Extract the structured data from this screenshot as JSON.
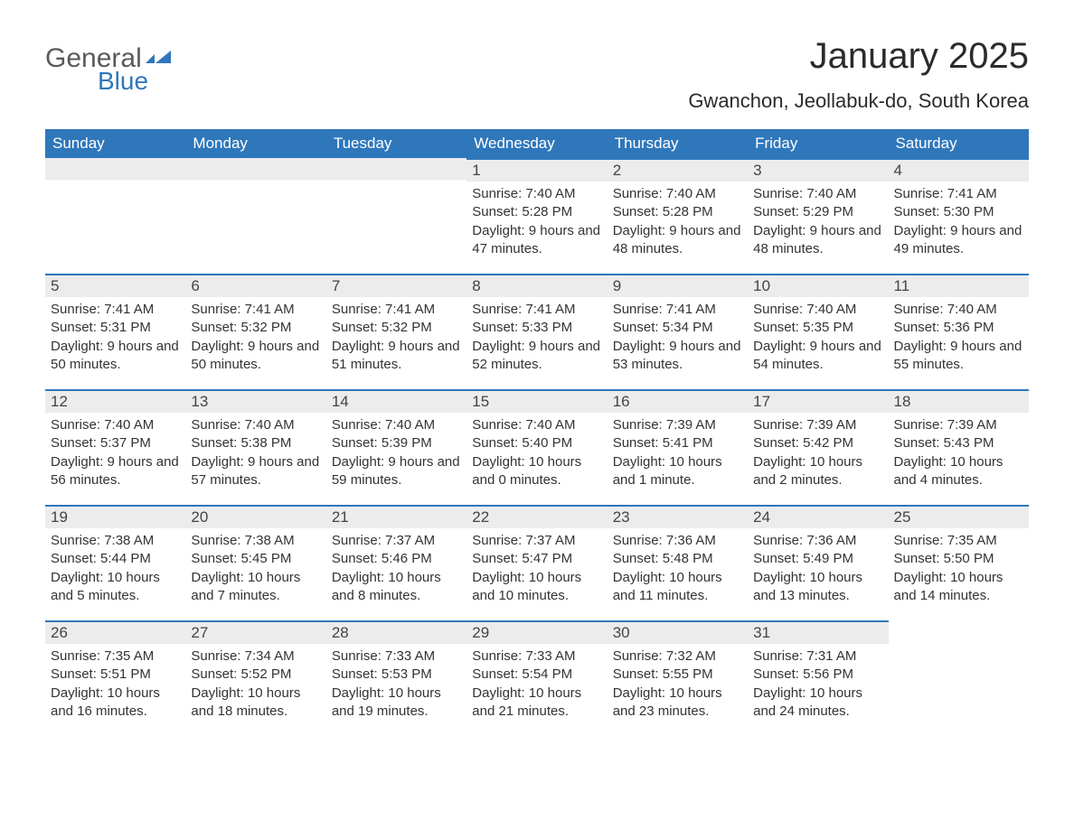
{
  "logo": {
    "general": "General",
    "blue": "Blue",
    "flag_color": "#2f77bb"
  },
  "title": "January 2025",
  "location": "Gwanchon, Jeollabuk-do, South Korea",
  "colors": {
    "header_bg": "#2f77bb",
    "header_text": "#ffffff",
    "daynum_bg": "#ececec",
    "border_top": "#2f77bb",
    "body_text": "#333333"
  },
  "weekdays": [
    "Sunday",
    "Monday",
    "Tuesday",
    "Wednesday",
    "Thursday",
    "Friday",
    "Saturday"
  ],
  "weeks": [
    [
      null,
      null,
      null,
      {
        "n": "1",
        "sr": "7:40 AM",
        "ss": "5:28 PM",
        "dl": "9 hours and 47 minutes."
      },
      {
        "n": "2",
        "sr": "7:40 AM",
        "ss": "5:28 PM",
        "dl": "9 hours and 48 minutes."
      },
      {
        "n": "3",
        "sr": "7:40 AM",
        "ss": "5:29 PM",
        "dl": "9 hours and 48 minutes."
      },
      {
        "n": "4",
        "sr": "7:41 AM",
        "ss": "5:30 PM",
        "dl": "9 hours and 49 minutes."
      }
    ],
    [
      {
        "n": "5",
        "sr": "7:41 AM",
        "ss": "5:31 PM",
        "dl": "9 hours and 50 minutes."
      },
      {
        "n": "6",
        "sr": "7:41 AM",
        "ss": "5:32 PM",
        "dl": "9 hours and 50 minutes."
      },
      {
        "n": "7",
        "sr": "7:41 AM",
        "ss": "5:32 PM",
        "dl": "9 hours and 51 minutes."
      },
      {
        "n": "8",
        "sr": "7:41 AM",
        "ss": "5:33 PM",
        "dl": "9 hours and 52 minutes."
      },
      {
        "n": "9",
        "sr": "7:41 AM",
        "ss": "5:34 PM",
        "dl": "9 hours and 53 minutes."
      },
      {
        "n": "10",
        "sr": "7:40 AM",
        "ss": "5:35 PM",
        "dl": "9 hours and 54 minutes."
      },
      {
        "n": "11",
        "sr": "7:40 AM",
        "ss": "5:36 PM",
        "dl": "9 hours and 55 minutes."
      }
    ],
    [
      {
        "n": "12",
        "sr": "7:40 AM",
        "ss": "5:37 PM",
        "dl": "9 hours and 56 minutes."
      },
      {
        "n": "13",
        "sr": "7:40 AM",
        "ss": "5:38 PM",
        "dl": "9 hours and 57 minutes."
      },
      {
        "n": "14",
        "sr": "7:40 AM",
        "ss": "5:39 PM",
        "dl": "9 hours and 59 minutes."
      },
      {
        "n": "15",
        "sr": "7:40 AM",
        "ss": "5:40 PM",
        "dl": "10 hours and 0 minutes."
      },
      {
        "n": "16",
        "sr": "7:39 AM",
        "ss": "5:41 PM",
        "dl": "10 hours and 1 minute."
      },
      {
        "n": "17",
        "sr": "7:39 AM",
        "ss": "5:42 PM",
        "dl": "10 hours and 2 minutes."
      },
      {
        "n": "18",
        "sr": "7:39 AM",
        "ss": "5:43 PM",
        "dl": "10 hours and 4 minutes."
      }
    ],
    [
      {
        "n": "19",
        "sr": "7:38 AM",
        "ss": "5:44 PM",
        "dl": "10 hours and 5 minutes."
      },
      {
        "n": "20",
        "sr": "7:38 AM",
        "ss": "5:45 PM",
        "dl": "10 hours and 7 minutes."
      },
      {
        "n": "21",
        "sr": "7:37 AM",
        "ss": "5:46 PM",
        "dl": "10 hours and 8 minutes."
      },
      {
        "n": "22",
        "sr": "7:37 AM",
        "ss": "5:47 PM",
        "dl": "10 hours and 10 minutes."
      },
      {
        "n": "23",
        "sr": "7:36 AM",
        "ss": "5:48 PM",
        "dl": "10 hours and 11 minutes."
      },
      {
        "n": "24",
        "sr": "7:36 AM",
        "ss": "5:49 PM",
        "dl": "10 hours and 13 minutes."
      },
      {
        "n": "25",
        "sr": "7:35 AM",
        "ss": "5:50 PM",
        "dl": "10 hours and 14 minutes."
      }
    ],
    [
      {
        "n": "26",
        "sr": "7:35 AM",
        "ss": "5:51 PM",
        "dl": "10 hours and 16 minutes."
      },
      {
        "n": "27",
        "sr": "7:34 AM",
        "ss": "5:52 PM",
        "dl": "10 hours and 18 minutes."
      },
      {
        "n": "28",
        "sr": "7:33 AM",
        "ss": "5:53 PM",
        "dl": "10 hours and 19 minutes."
      },
      {
        "n": "29",
        "sr": "7:33 AM",
        "ss": "5:54 PM",
        "dl": "10 hours and 21 minutes."
      },
      {
        "n": "30",
        "sr": "7:32 AM",
        "ss": "5:55 PM",
        "dl": "10 hours and 23 minutes."
      },
      {
        "n": "31",
        "sr": "7:31 AM",
        "ss": "5:56 PM",
        "dl": "10 hours and 24 minutes."
      },
      null
    ]
  ],
  "labels": {
    "sunrise": "Sunrise: ",
    "sunset": "Sunset: ",
    "daylight": "Daylight: "
  }
}
